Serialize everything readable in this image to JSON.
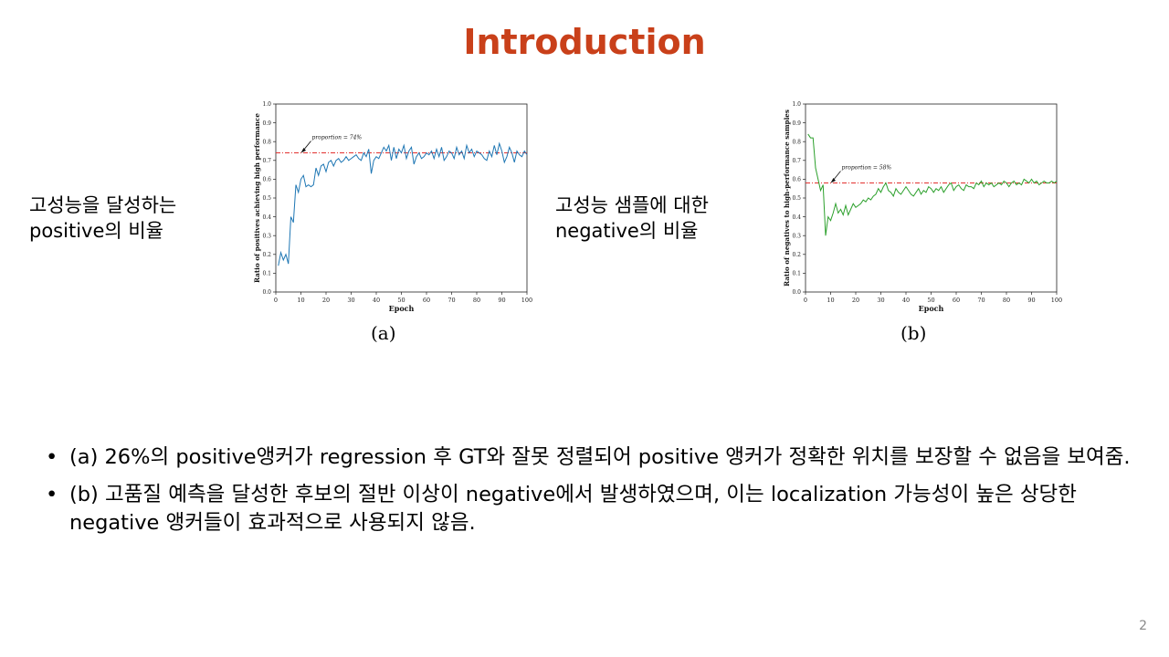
{
  "slide": {
    "title": "Introduction",
    "page_number": "2",
    "title_color": "#c9401a"
  },
  "labels": {
    "a": [
      "고성능을 달성하는",
      "positive의 비율"
    ],
    "b": [
      "고성능 샘플에 대한",
      "negative의 비율"
    ]
  },
  "bullets": [
    {
      "marker": "•",
      "text": "(a) 26%의 positive앵커가 regression 후 GT와 잘못 정렬되어 positive 앵커가 정확한 위치를 보장할 수 없음을 보여줌."
    },
    {
      "marker": "•",
      "text": "(b) 고품질 예측을 달성한 후보의 절반 이상이 negative에서 발생하였으며, 이는 localization 가능성이 높은 상당한 negative 앵커들이 효과적으로 사용되지 않음."
    }
  ],
  "chart_data": [
    {
      "type": "line",
      "caption": "(a)",
      "xlabel": "Epoch",
      "ylabel": "Ratio of positives achieving high performance",
      "xlim": [
        0,
        100
      ],
      "ylim": [
        0.0,
        1.0
      ],
      "xticks": [
        "0",
        "10",
        "20",
        "30",
        "40",
        "50",
        "60",
        "70",
        "80",
        "90",
        "100"
      ],
      "yticks": [
        "0.0",
        "0.1",
        "0.2",
        "0.3",
        "0.4",
        "0.5",
        "0.6",
        "0.7",
        "0.8",
        "0.9",
        "1.0"
      ],
      "series_color": "#1f77b4",
      "reference_color": "#e3312f",
      "reference_line": {
        "value": 0.74,
        "label": "proportion = 74%"
      },
      "x": [
        1,
        2,
        3,
        4,
        5,
        6,
        7,
        8,
        9,
        10,
        11,
        12,
        13,
        14,
        15,
        16,
        17,
        18,
        19,
        20,
        21,
        22,
        23,
        24,
        25,
        26,
        27,
        28,
        29,
        30,
        31,
        32,
        33,
        34,
        35,
        36,
        37,
        38,
        39,
        40,
        41,
        42,
        43,
        44,
        45,
        46,
        47,
        48,
        49,
        50,
        51,
        52,
        53,
        54,
        55,
        56,
        57,
        58,
        59,
        60,
        61,
        62,
        63,
        64,
        65,
        66,
        67,
        68,
        69,
        70,
        71,
        72,
        73,
        74,
        75,
        76,
        77,
        78,
        79,
        80,
        81,
        82,
        83,
        84,
        85,
        86,
        87,
        88,
        89,
        90,
        91,
        92,
        93,
        94,
        95,
        96,
        97,
        98,
        99,
        100
      ],
      "values": [
        0.14,
        0.21,
        0.17,
        0.2,
        0.15,
        0.4,
        0.37,
        0.57,
        0.53,
        0.6,
        0.62,
        0.56,
        0.57,
        0.56,
        0.57,
        0.66,
        0.62,
        0.67,
        0.68,
        0.64,
        0.69,
        0.7,
        0.67,
        0.7,
        0.71,
        0.69,
        0.7,
        0.72,
        0.7,
        0.71,
        0.72,
        0.73,
        0.71,
        0.7,
        0.74,
        0.72,
        0.76,
        0.63,
        0.7,
        0.72,
        0.71,
        0.74,
        0.77,
        0.75,
        0.78,
        0.7,
        0.77,
        0.71,
        0.76,
        0.74,
        0.78,
        0.71,
        0.75,
        0.77,
        0.68,
        0.72,
        0.74,
        0.71,
        0.72,
        0.74,
        0.73,
        0.75,
        0.71,
        0.76,
        0.72,
        0.77,
        0.7,
        0.72,
        0.75,
        0.74,
        0.71,
        0.77,
        0.73,
        0.75,
        0.71,
        0.78,
        0.74,
        0.76,
        0.72,
        0.75,
        0.74,
        0.73,
        0.71,
        0.7,
        0.75,
        0.72,
        0.78,
        0.73,
        0.79,
        0.75,
        0.69,
        0.72,
        0.77,
        0.74,
        0.69,
        0.75,
        0.73,
        0.72,
        0.75,
        0.73
      ]
    },
    {
      "type": "line",
      "caption": "(b)",
      "xlabel": "Epoch",
      "ylabel": "Ratio of negatives to high-performance samples",
      "xlim": [
        0,
        100
      ],
      "ylim": [
        0.0,
        1.0
      ],
      "xticks": [
        "0",
        "10",
        "20",
        "30",
        "40",
        "50",
        "60",
        "70",
        "80",
        "90",
        "100"
      ],
      "yticks": [
        "0.0",
        "0.1",
        "0.2",
        "0.3",
        "0.4",
        "0.5",
        "0.6",
        "0.7",
        "0.8",
        "0.9",
        "1.0"
      ],
      "series_color": "#2ca02c",
      "reference_color": "#e3312f",
      "reference_line": {
        "value": 0.58,
        "label": "proportion = 58%"
      },
      "x": [
        1,
        2,
        3,
        4,
        5,
        6,
        7,
        8,
        9,
        10,
        11,
        12,
        13,
        14,
        15,
        16,
        17,
        18,
        19,
        20,
        21,
        22,
        23,
        24,
        25,
        26,
        27,
        28,
        29,
        30,
        31,
        32,
        33,
        34,
        35,
        36,
        37,
        38,
        39,
        40,
        41,
        42,
        43,
        44,
        45,
        46,
        47,
        48,
        49,
        50,
        51,
        52,
        53,
        54,
        55,
        56,
        57,
        58,
        59,
        60,
        61,
        62,
        63,
        64,
        65,
        66,
        67,
        68,
        69,
        70,
        71,
        72,
        73,
        74,
        75,
        76,
        77,
        78,
        79,
        80,
        81,
        82,
        83,
        84,
        85,
        86,
        87,
        88,
        89,
        90,
        91,
        92,
        93,
        94,
        95,
        96,
        97,
        98,
        99,
        100
      ],
      "values": [
        0.84,
        0.82,
        0.82,
        0.66,
        0.6,
        0.54,
        0.57,
        0.3,
        0.4,
        0.38,
        0.42,
        0.47,
        0.42,
        0.44,
        0.41,
        0.46,
        0.41,
        0.44,
        0.47,
        0.45,
        0.46,
        0.47,
        0.49,
        0.48,
        0.5,
        0.49,
        0.51,
        0.52,
        0.55,
        0.53,
        0.56,
        0.58,
        0.54,
        0.53,
        0.51,
        0.55,
        0.53,
        0.52,
        0.54,
        0.56,
        0.54,
        0.52,
        0.51,
        0.53,
        0.55,
        0.52,
        0.54,
        0.53,
        0.56,
        0.55,
        0.53,
        0.55,
        0.54,
        0.56,
        0.53,
        0.55,
        0.57,
        0.58,
        0.54,
        0.56,
        0.57,
        0.55,
        0.54,
        0.57,
        0.56,
        0.56,
        0.55,
        0.58,
        0.57,
        0.59,
        0.56,
        0.58,
        0.57,
        0.58,
        0.56,
        0.57,
        0.58,
        0.57,
        0.59,
        0.58,
        0.56,
        0.58,
        0.59,
        0.57,
        0.58,
        0.57,
        0.6,
        0.59,
        0.58,
        0.6,
        0.58,
        0.59,
        0.57,
        0.58,
        0.59,
        0.58,
        0.58,
        0.59,
        0.58,
        0.59
      ]
    }
  ]
}
